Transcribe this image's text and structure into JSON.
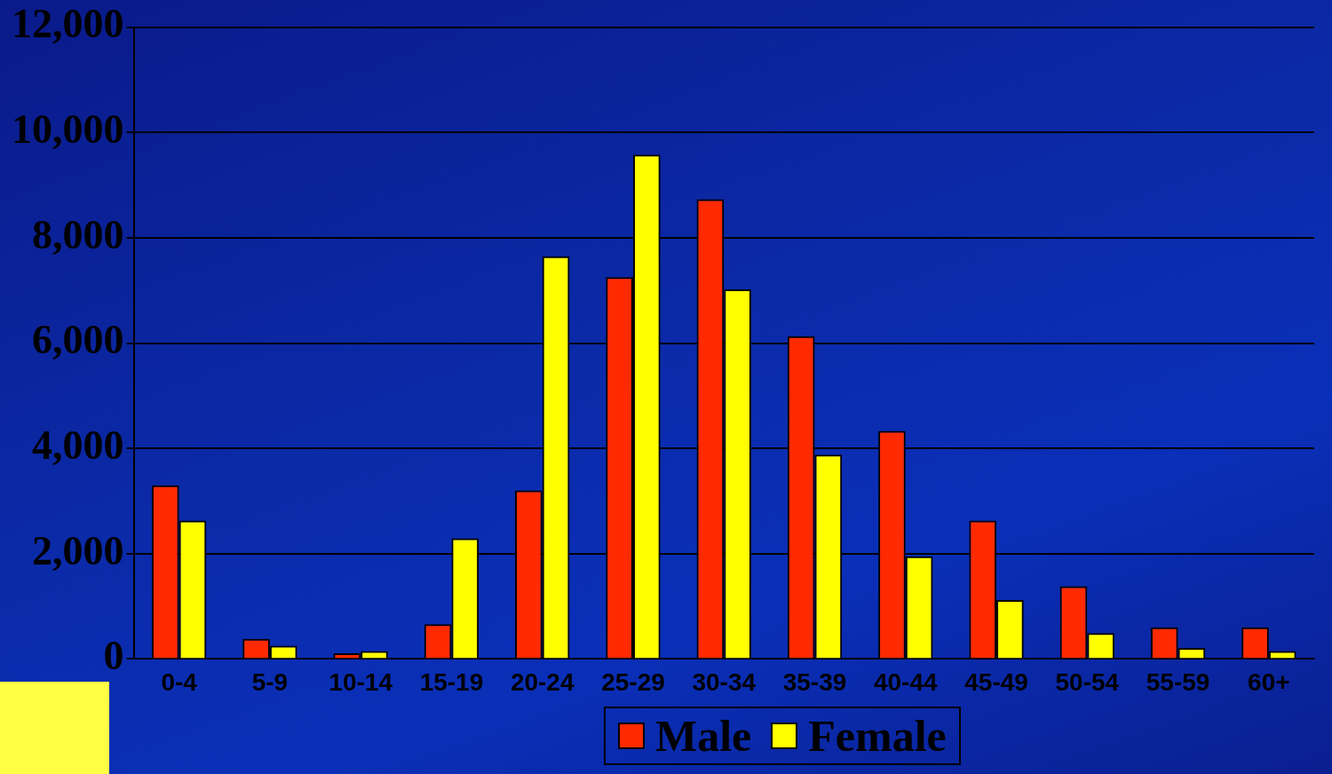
{
  "chart_data": {
    "type": "bar",
    "categories": [
      "0-4",
      "5-9",
      "10-14",
      "15-19",
      "20-24",
      "25-29",
      "30-34",
      "35-39",
      "40-44",
      "45-49",
      "50-54",
      "55-59",
      "60+"
    ],
    "series": [
      {
        "name": "Male",
        "color": "#ff2a00",
        "values": [
          3300,
          380,
          110,
          660,
          3200,
          7250,
          8730,
          6130,
          4330,
          2630,
          1380,
          600,
          600
        ]
      },
      {
        "name": "Female",
        "color": "#ffff00",
        "values": [
          2630,
          250,
          150,
          2290,
          7650,
          9580,
          7020,
          3880,
          1950,
          1120,
          490,
          210,
          150
        ]
      }
    ],
    "ylim": [
      0,
      12000
    ],
    "yticks": [
      0,
      {
        "value": 2000,
        "label": "2,000"
      },
      {
        "value": 4000,
        "label": "4,000"
      },
      {
        "value": 6000,
        "label": "6,000"
      },
      {
        "value": 8000,
        "label": "8,000"
      },
      {
        "value": 10000,
        "label": "10,000"
      },
      {
        "value": 12000,
        "label": "12,000"
      }
    ],
    "grid": "y",
    "legend": "bottom"
  }
}
